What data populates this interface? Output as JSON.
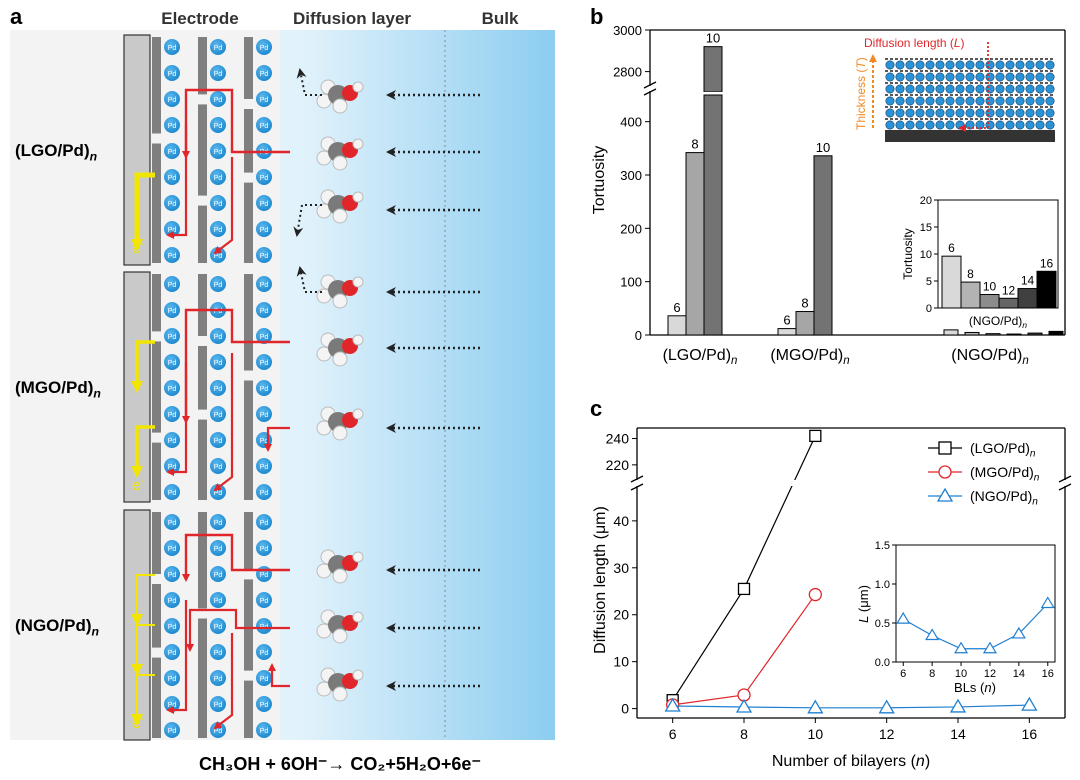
{
  "panel_a": {
    "letter": "a",
    "headers": {
      "electrode": "Electrode",
      "diffusion": "Diffusion layer",
      "bulk": "Bulk"
    },
    "rows": [
      {
        "label": "(LGO/Pd)",
        "sub": "n"
      },
      {
        "label": "(MGO/Pd)",
        "sub": "n"
      },
      {
        "label": "(NGO/Pd)",
        "sub": "n"
      }
    ],
    "pd": "Pd",
    "electron": "e",
    "electron_sup": "-",
    "equation": "CH₃OH + 6OH⁻→ CO₂+5H₂O+6e⁻",
    "colors": {
      "flow": "#e0262a",
      "electron": "#f2e600",
      "pd": "#1c8fd6",
      "plate": "#7f7f7f",
      "bulk": "#9fd4f2"
    }
  },
  "panel_b": {
    "letter": "b",
    "chart_data": {
      "type": "bar",
      "ylabel": "Tortuosity",
      "ylim_lower": [
        0,
        450
      ],
      "ylim_upper": [
        2750,
        3000
      ],
      "yticks": [
        0,
        100,
        200,
        300,
        400,
        2800,
        3000
      ],
      "groups": [
        {
          "label": "(LGO/Pd)",
          "sub": "n",
          "bars": [
            {
              "bl": 6,
              "value": 36
            },
            {
              "bl": 8,
              "value": 342
            },
            {
              "bl": 10,
              "value": 2920
            }
          ]
        },
        {
          "label": "(MGO/Pd)",
          "sub": "n",
          "bars": [
            {
              "bl": 6,
              "value": 12
            },
            {
              "bl": 8,
              "value": 44
            },
            {
              "bl": 10,
              "value": 336
            }
          ]
        },
        {
          "label": "(NGO/Pd)",
          "sub": "n",
          "bars": [
            {
              "bl": 6,
              "value": 9.6
            },
            {
              "bl": 8,
              "value": 4.8
            },
            {
              "bl": 10,
              "value": 2.5
            },
            {
              "bl": 12,
              "value": 1.8
            },
            {
              "bl": 14,
              "value": 3.6
            },
            {
              "bl": 16,
              "value": 6.8
            }
          ]
        }
      ],
      "inset": {
        "ylabel": "Tortuosity",
        "xlabel": "(NGO/Pd)",
        "xsub": "n",
        "ylim": [
          0,
          20
        ],
        "yticks": [
          0,
          5,
          10,
          15,
          20
        ],
        "bars": [
          {
            "bl": 6,
            "value": 9.6,
            "color": "#d9d9d9"
          },
          {
            "bl": 8,
            "value": 4.8,
            "color": "#b3b3b3"
          },
          {
            "bl": 10,
            "value": 2.5,
            "color": "#8c8c8c"
          },
          {
            "bl": 12,
            "value": 1.8,
            "color": "#666666"
          },
          {
            "bl": 14,
            "value": 3.6,
            "color": "#404040"
          },
          {
            "bl": 16,
            "value": 6.8,
            "color": "#000000"
          }
        ]
      },
      "colors": [
        "#d9d9d9",
        "#a6a6a6",
        "#737373"
      ]
    },
    "schematic": {
      "diffusion_length": "Diffusion length (",
      "L": "L",
      "close": ")",
      "thickness": "Thickness (",
      "T": "T"
    }
  },
  "panel_c": {
    "letter": "c",
    "chart_data": {
      "type": "line",
      "xlabel": "Number of bilayers (",
      "xlabel_var": "n",
      "ylabel": "Diffusion length (μm)",
      "xlim": [
        5,
        17
      ],
      "xticks": [
        6,
        8,
        10,
        12,
        14,
        16
      ],
      "ylim_lower": [
        -2,
        47
      ],
      "ylim_upper": [
        210,
        248
      ],
      "yticks_lower": [
        0,
        10,
        20,
        30,
        40
      ],
      "yticks_upper": [
        220,
        240
      ],
      "series": [
        {
          "name": "(LGO/Pd)",
          "sub": "n",
          "marker": "square",
          "color": "#000000",
          "x": [
            6,
            8,
            10
          ],
          "y": [
            1.8,
            25.5,
            242
          ]
        },
        {
          "name": "(MGO/Pd)",
          "sub": "n",
          "marker": "circle",
          "color": "#e0262a",
          "x": [
            6,
            8,
            10
          ],
          "y": [
            0.8,
            2.9,
            24.3
          ]
        },
        {
          "name": "(NGO/Pd)",
          "sub": "n",
          "marker": "triangle",
          "color": "#1f7fd1",
          "x": [
            6,
            8,
            10,
            12,
            14,
            16
          ],
          "y": [
            0.55,
            0.34,
            0.17,
            0.17,
            0.36,
            0.75
          ]
        }
      ],
      "inset": {
        "xlabel": "BLs (",
        "xlabel_var": "n",
        "ylabel": "L (μm)",
        "xlim": [
          5.5,
          16.5
        ],
        "ylim": [
          0,
          1.5
        ],
        "xticks": [
          6,
          8,
          10,
          12,
          14,
          16
        ],
        "yticks": [
          0,
          0.5,
          1.0,
          1.5
        ],
        "ytick_labels": [
          "0.0",
          "0.5",
          "1.0",
          "1.5"
        ],
        "x": [
          6,
          8,
          10,
          12,
          14,
          16
        ],
        "y": [
          0.55,
          0.34,
          0.17,
          0.17,
          0.36,
          0.75
        ],
        "color": "#1f7fd1"
      }
    }
  }
}
